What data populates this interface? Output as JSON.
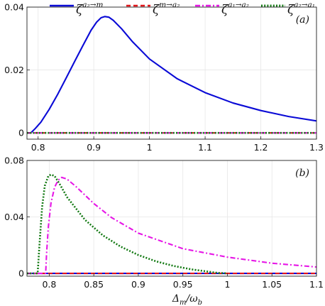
{
  "chart_data": [
    {
      "type": "line",
      "panel_label": "(a)",
      "xlim": [
        0.78,
        1.3
      ],
      "ylim": [
        -0.002,
        0.04
      ],
      "xticks": [
        0.8,
        0.9,
        1.0,
        1.1,
        1.2,
        1.3
      ],
      "xtick_labels": [
        "0.8",
        "0.9",
        "1",
        "1.1",
        "1.2",
        "1.3"
      ],
      "yticks": [
        0,
        0.02,
        0.04
      ],
      "ytick_labels": [
        "0",
        "0.02",
        "0.04"
      ],
      "grid": true,
      "series": [
        {
          "key": "a2_to_m",
          "color": "#0a0ad6",
          "style": "solid",
          "points": [
            [
              0.78,
              0.0
            ],
            [
              0.787,
              0.0
            ],
            [
              0.795,
              0.0014
            ],
            [
              0.805,
              0.0034
            ],
            [
              0.82,
              0.0075
            ],
            [
              0.835,
              0.0122
            ],
            [
              0.85,
              0.0173
            ],
            [
              0.865,
              0.0225
            ],
            [
              0.88,
              0.0276
            ],
            [
              0.895,
              0.0326
            ],
            [
              0.905,
              0.0352
            ],
            [
              0.913,
              0.0366
            ],
            [
              0.92,
              0.037
            ],
            [
              0.927,
              0.0368
            ],
            [
              0.935,
              0.0358
            ],
            [
              0.95,
              0.0331
            ],
            [
              0.97,
              0.0289
            ],
            [
              1.0,
              0.0235
            ],
            [
              1.05,
              0.0172
            ],
            [
              1.1,
              0.0128
            ],
            [
              1.15,
              0.0095
            ],
            [
              1.2,
              0.0071
            ],
            [
              1.25,
              0.0052
            ],
            [
              1.3,
              0.0038
            ]
          ]
        },
        {
          "key": "m_to_a2",
          "color": "#e0161b",
          "style": "dashed",
          "points": [
            [
              0.78,
              0.0
            ],
            [
              1.3,
              0.0
            ]
          ]
        },
        {
          "key": "a1_to_a2",
          "color": "#e616e6",
          "style": "dashdot",
          "points": [
            [
              0.78,
              0.0
            ],
            [
              1.3,
              0.0
            ]
          ]
        },
        {
          "key": "a2_to_a1",
          "color": "#147a14",
          "style": "dotted",
          "points": [
            [
              0.78,
              0.0
            ],
            [
              1.3,
              0.0
            ]
          ]
        }
      ]
    },
    {
      "type": "line",
      "panel_label": "(b)",
      "xlabel_main": "Δ",
      "xlabel_sub1": "m",
      "xlabel_slash": "/ω",
      "xlabel_sub2": "b",
      "xlim": [
        0.775,
        1.1
      ],
      "ylim": [
        -0.002,
        0.08
      ],
      "xticks": [
        0.8,
        0.85,
        0.9,
        0.95,
        1.0,
        1.05,
        1.1
      ],
      "xtick_labels": [
        "0.8",
        "0.85",
        "0.9",
        "0.95",
        "1",
        "1.05",
        "1.1"
      ],
      "yticks": [
        0,
        0.04,
        0.08
      ],
      "ytick_labels": [
        "0",
        "0.04",
        "0.08"
      ],
      "grid": true,
      "series": [
        {
          "key": "a2_to_m",
          "color": "#0a0ad6",
          "style": "solid",
          "points": [
            [
              0.775,
              0.0
            ],
            [
              1.1,
              0.0
            ]
          ]
        },
        {
          "key": "m_to_a2",
          "color": "#e0161b",
          "style": "dashed",
          "points": [
            [
              0.775,
              0.0
            ],
            [
              1.1,
              0.0
            ]
          ]
        },
        {
          "key": "a1_to_a2",
          "color": "#e616e6",
          "style": "dashdot",
          "points": [
            [
              0.775,
              0.0
            ],
            [
              0.796,
              0.0
            ],
            [
              0.797,
              0.014
            ],
            [
              0.799,
              0.033
            ],
            [
              0.802,
              0.05
            ],
            [
              0.806,
              0.061
            ],
            [
              0.81,
              0.066
            ],
            [
              0.814,
              0.068
            ],
            [
              0.82,
              0.0668
            ],
            [
              0.83,
              0.0615
            ],
            [
              0.85,
              0.0495
            ],
            [
              0.87,
              0.0395
            ],
            [
              0.9,
              0.0285
            ],
            [
              0.95,
              0.0175
            ],
            [
              1.0,
              0.0115
            ],
            [
              1.05,
              0.0072
            ],
            [
              1.1,
              0.0045
            ]
          ]
        },
        {
          "key": "a2_to_a1",
          "color": "#147a14",
          "style": "dotted",
          "points": [
            [
              0.775,
              0.0
            ],
            [
              0.787,
              0.0
            ],
            [
              0.789,
              0.02
            ],
            [
              0.792,
              0.047
            ],
            [
              0.795,
              0.062
            ],
            [
              0.799,
              0.069
            ],
            [
              0.802,
              0.07
            ],
            [
              0.806,
              0.069
            ],
            [
              0.812,
              0.063
            ],
            [
              0.82,
              0.054
            ],
            [
              0.84,
              0.038
            ],
            [
              0.86,
              0.027
            ],
            [
              0.88,
              0.019
            ],
            [
              0.9,
              0.013
            ],
            [
              0.92,
              0.0085
            ],
            [
              0.94,
              0.0052
            ],
            [
              0.96,
              0.0028
            ],
            [
              0.98,
              0.0011
            ],
            [
              0.99,
              0.0003
            ],
            [
              1.0,
              0.0
            ]
          ]
        }
      ]
    }
  ],
  "legend": [
    {
      "key": "a2_to_m",
      "base": "ζ",
      "sup": "a₂→m",
      "color": "#0a0ad6",
      "style": "solid"
    },
    {
      "key": "m_to_a2",
      "base": "ζ",
      "sup": "m→a₂",
      "color": "#e0161b",
      "style": "dashed"
    },
    {
      "key": "a1_to_a2",
      "base": "ζ",
      "sup": "a₁→a₂",
      "color": "#e616e6",
      "style": "dashdot"
    },
    {
      "key": "a2_to_a1",
      "base": "ζ",
      "sup": "a₂→a₁",
      "color": "#147a14",
      "style": "dotted"
    }
  ]
}
